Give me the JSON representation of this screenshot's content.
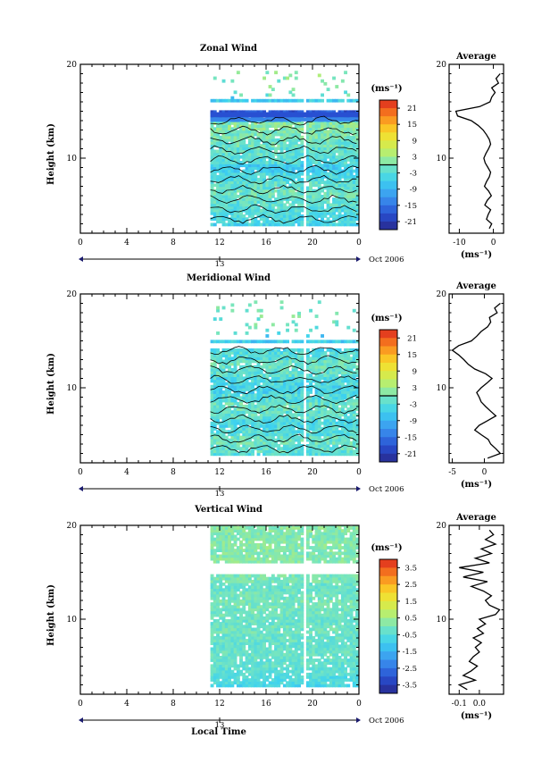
{
  "figure": {
    "date_label": "Oct 2006",
    "xlabel": "Local Time",
    "unit_label": "(ms⁻¹)"
  },
  "chart_data": [
    {
      "type": "heatmap",
      "title": "Zonal Wind",
      "ylabel": "Height (km)",
      "xlabel": "Local Time",
      "ylim": [
        2,
        20
      ],
      "xlim": [
        0,
        24
      ],
      "x_ticks": [
        "0",
        "4",
        "8",
        "12",
        "16",
        "20",
        "0"
      ],
      "y_ticks": [
        "10",
        "20"
      ],
      "day_label": "13",
      "data_start_hour": 11.2,
      "gap_hours": [
        19.0,
        19.3
      ],
      "blank_band_km": [
        15.0,
        16.0
      ],
      "colorbar": {
        "label": "(ms⁻¹)",
        "ticks": [
          "21",
          "15",
          "9",
          "3",
          "-3",
          "-9",
          "-15",
          "-21"
        ],
        "range": [
          -24,
          24
        ]
      },
      "field_levels": [
        -5,
        -4,
        -3,
        -2,
        -1,
        -2,
        -4,
        -6,
        -3,
        -2,
        -1,
        0,
        1,
        -8,
        -18,
        -6,
        -1,
        0,
        1,
        0
      ],
      "profile": {
        "title": "Average",
        "xlabel": "(ms⁻¹)",
        "x_ticks": [
          "-10",
          "0"
        ],
        "xlim": [
          -13,
          3
        ],
        "y": [
          2.5,
          3,
          3.5,
          4,
          4.5,
          5,
          5.5,
          6,
          6.5,
          7,
          7.5,
          8,
          8.5,
          9,
          9.5,
          10,
          10.5,
          11,
          11.5,
          12,
          12.5,
          13,
          13.5,
          14,
          14.5,
          15,
          15.5,
          16,
          16.5,
          17,
          17.5,
          18,
          18.5,
          19
        ],
        "values": [
          -1.2,
          -0.5,
          -2.0,
          -1.5,
          -0.8,
          -2.5,
          -1.8,
          -0.6,
          -1.4,
          -2.6,
          -2.0,
          -1.2,
          -0.8,
          -1.6,
          -2.4,
          -2.8,
          -2.2,
          -1.4,
          -0.8,
          -1.2,
          -2.0,
          -3.0,
          -4.5,
          -6.5,
          -10.5,
          -11.0,
          -4.0,
          -1.0,
          -0.5,
          0.5,
          -0.5,
          1.5,
          0.8,
          2.0
        ]
      }
    },
    {
      "type": "heatmap",
      "title": "Meridional Wind",
      "ylabel": "Height (km)",
      "xlabel": "Local Time",
      "ylim": [
        2,
        20
      ],
      "xlim": [
        0,
        24
      ],
      "x_ticks": [
        "0",
        "4",
        "8",
        "12",
        "16",
        "20",
        "0"
      ],
      "y_ticks": [
        "10",
        "20"
      ],
      "day_label": "13",
      "data_start_hour": 11.2,
      "gap_hours": [
        19.0,
        19.3
      ],
      "blank_band_km": [
        14.0,
        14.7
      ],
      "colorbar": {
        "label": "(ms⁻¹)",
        "ticks": [
          "21",
          "15",
          "9",
          "3",
          "-3",
          "-9",
          "-15",
          "-21"
        ],
        "range": [
          -24,
          24
        ]
      },
      "field_levels": [
        -3,
        -2,
        -1,
        -3,
        -4,
        -2,
        -1,
        -3,
        -5,
        -4,
        -2,
        -1,
        -3,
        -4,
        -6,
        -2,
        -1,
        0,
        -1,
        0
      ],
      "profile": {
        "title": "Average",
        "xlabel": "(ms⁻¹)",
        "x_ticks": [
          "-5",
          "0"
        ],
        "xlim": [
          -5.5,
          3
        ],
        "y": [
          2.5,
          3,
          3.5,
          4,
          4.5,
          5,
          5.5,
          6,
          6.5,
          7,
          7.5,
          8,
          8.5,
          9,
          9.5,
          10,
          10.5,
          11,
          11.5,
          12,
          12.5,
          13,
          13.5,
          14,
          14.5,
          15,
          15.5,
          16,
          16.5,
          17,
          17.5,
          18,
          18.5,
          19
        ],
        "values": [
          0.5,
          2.5,
          1.8,
          1.0,
          0.6,
          -0.5,
          -1.5,
          -0.8,
          0.5,
          1.8,
          1.0,
          0.2,
          -0.5,
          -0.8,
          -1.2,
          -0.5,
          0.4,
          1.2,
          0.2,
          -1.5,
          -2.5,
          -3.2,
          -4.0,
          -5.0,
          -4.0,
          -2.0,
          -1.2,
          -0.5,
          0.5,
          1.0,
          0.8,
          2.0,
          1.6,
          2.5
        ]
      }
    },
    {
      "type": "heatmap",
      "title": "Vertical Wind",
      "ylabel": "Height (km)",
      "xlabel": "Local Time",
      "ylim": [
        2,
        20
      ],
      "xlim": [
        0,
        24
      ],
      "x_ticks": [
        "0",
        "4",
        "8",
        "12",
        "16",
        "20",
        "0"
      ],
      "y_ticks": [
        "10",
        "20"
      ],
      "day_label": "13",
      "data_start_hour": 11.2,
      "gap_hours": [
        19.0,
        19.3
      ],
      "blank_band_km": [
        14.8,
        15.8
      ],
      "colorbar": {
        "label": "(ms⁻¹)",
        "ticks": [
          "3.5",
          "2.5",
          "1.5",
          "0.5",
          "-0.5",
          "-1.5",
          "-2.5",
          "-3.5"
        ],
        "range": [
          -4,
          4
        ]
      },
      "field_levels": [
        -0.8,
        -0.6,
        -0.4,
        -0.3,
        -0.2,
        -0.3,
        -0.2,
        -0.1,
        -0.2,
        -0.1,
        0,
        -0.1,
        -0.2,
        0,
        0.1,
        0.2,
        0.1,
        0.2,
        0.1,
        0.2
      ],
      "profile": {
        "title": "Average",
        "xlabel": "(ms⁻¹)",
        "x_ticks": [
          "-0.1",
          "0.0"
        ],
        "xlim": [
          -0.15,
          0.12
        ],
        "y": [
          2.5,
          3,
          3.5,
          4,
          4.5,
          5,
          5.5,
          6,
          6.5,
          7,
          7.5,
          8,
          8.5,
          9,
          9.5,
          10,
          10.5,
          11,
          11.5,
          12,
          12.5,
          13,
          13.5,
          14,
          14.5,
          15,
          15.5,
          16,
          16.5,
          17,
          17.5,
          18,
          18.5,
          19,
          19.5
        ],
        "values": [
          -0.06,
          -0.1,
          -0.02,
          -0.08,
          -0.04,
          -0.01,
          -0.05,
          -0.03,
          0.0,
          -0.02,
          0.01,
          -0.03,
          0.02,
          -0.01,
          0.03,
          0.0,
          0.08,
          0.1,
          0.05,
          0.03,
          0.06,
          0.02,
          -0.04,
          0.04,
          -0.08,
          0.02,
          -0.1,
          0.05,
          -0.02,
          0.06,
          0.01,
          0.08,
          0.03,
          0.07,
          0.05
        ]
      }
    }
  ]
}
